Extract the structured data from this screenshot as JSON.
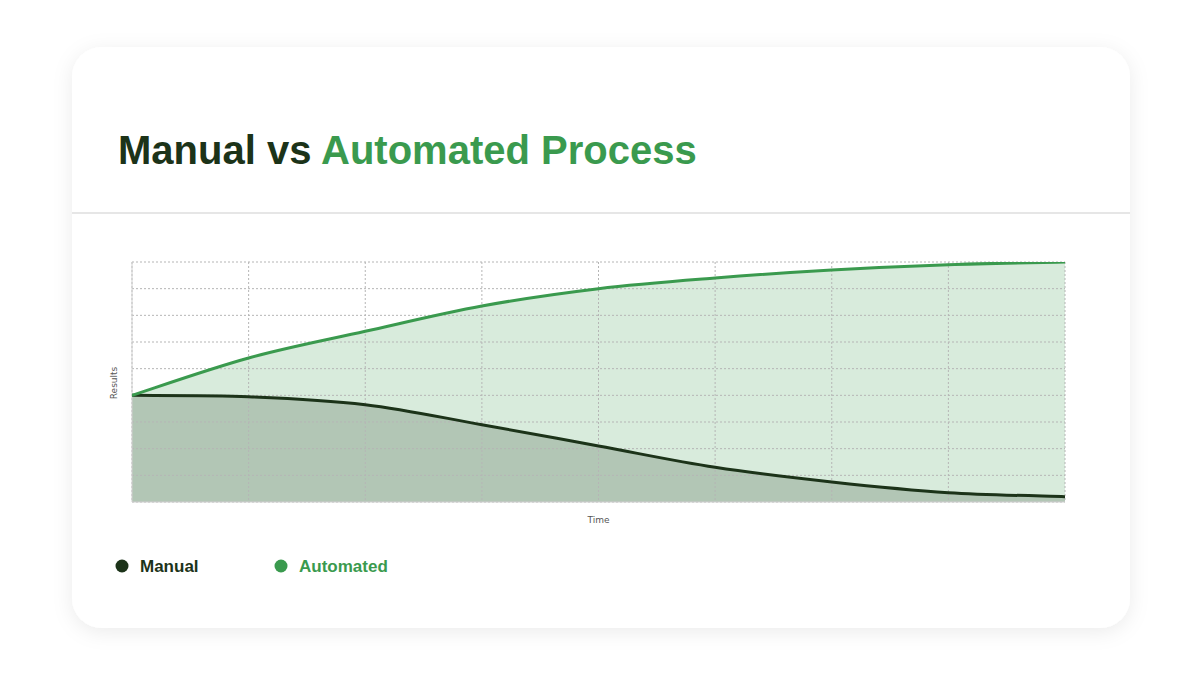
{
  "chart_data": {
    "type": "line",
    "title": "Manual vs Automated Process",
    "x_label": "Time",
    "y_label": "Results",
    "x": [
      0,
      1,
      2,
      3,
      4,
      5,
      6,
      7,
      8
    ],
    "series": [
      {
        "name": "Manual",
        "color": "#1c3319",
        "values": [
          4.0,
          3.95,
          3.65,
          2.9,
          2.1,
          1.3,
          0.75,
          0.35,
          0.2
        ]
      },
      {
        "name": "Automated",
        "color": "#3a9a4e",
        "values": [
          4.0,
          5.4,
          6.4,
          7.35,
          8.0,
          8.4,
          8.7,
          8.9,
          9.0
        ]
      }
    ],
    "xlim": [
      0,
      8
    ],
    "xticks": [
      0,
      1,
      2,
      3,
      4,
      5,
      6,
      7,
      8
    ],
    "ylim": [
      0,
      9
    ],
    "yticks": [
      0,
      1,
      2,
      3,
      4,
      5,
      6,
      7,
      8,
      9
    ],
    "grid": true,
    "tick_labels": false,
    "legend": "bottom"
  }
}
